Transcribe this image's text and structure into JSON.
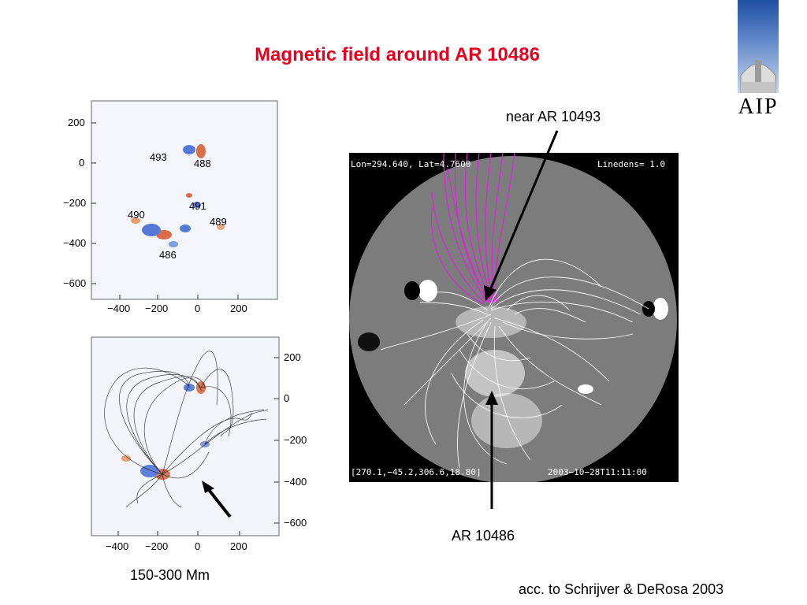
{
  "slide": {
    "title": "Magnetic field around AR 10486",
    "logo_text": "AIP",
    "label_near": "near AR 10493",
    "label_ar": "AR 10486",
    "caption_scale": "150-300 Mm",
    "citation": "acc. to Schrijver & DeRosa 2003"
  },
  "magnetogram": {
    "y_ticks": [
      "200",
      "0",
      "−200",
      "−400",
      "−600"
    ],
    "x_ticks": [
      "−400",
      "−200",
      "0",
      "200"
    ],
    "region_labels": [
      "493",
      "488",
      "491",
      "490",
      "489",
      "486"
    ]
  },
  "fieldlines_plot": {
    "y_ticks": [
      "200",
      "0",
      "−200",
      "−400",
      "−600"
    ],
    "x_ticks": [
      "−400",
      "−200",
      "0",
      "200"
    ]
  },
  "sun_image": {
    "header_left": "Lon=294.640, Lat=4.7600",
    "header_right": "Linedens= 1.0",
    "footer_left": "[270.1,−45.2,306.6,18.80]",
    "footer_right": "2003−10−28T11:11:00"
  },
  "colors": {
    "title": "#e8001e",
    "open_field_lines": "#e020e0",
    "positive_flux": "#d04010",
    "negative_flux": "#2050d0"
  }
}
